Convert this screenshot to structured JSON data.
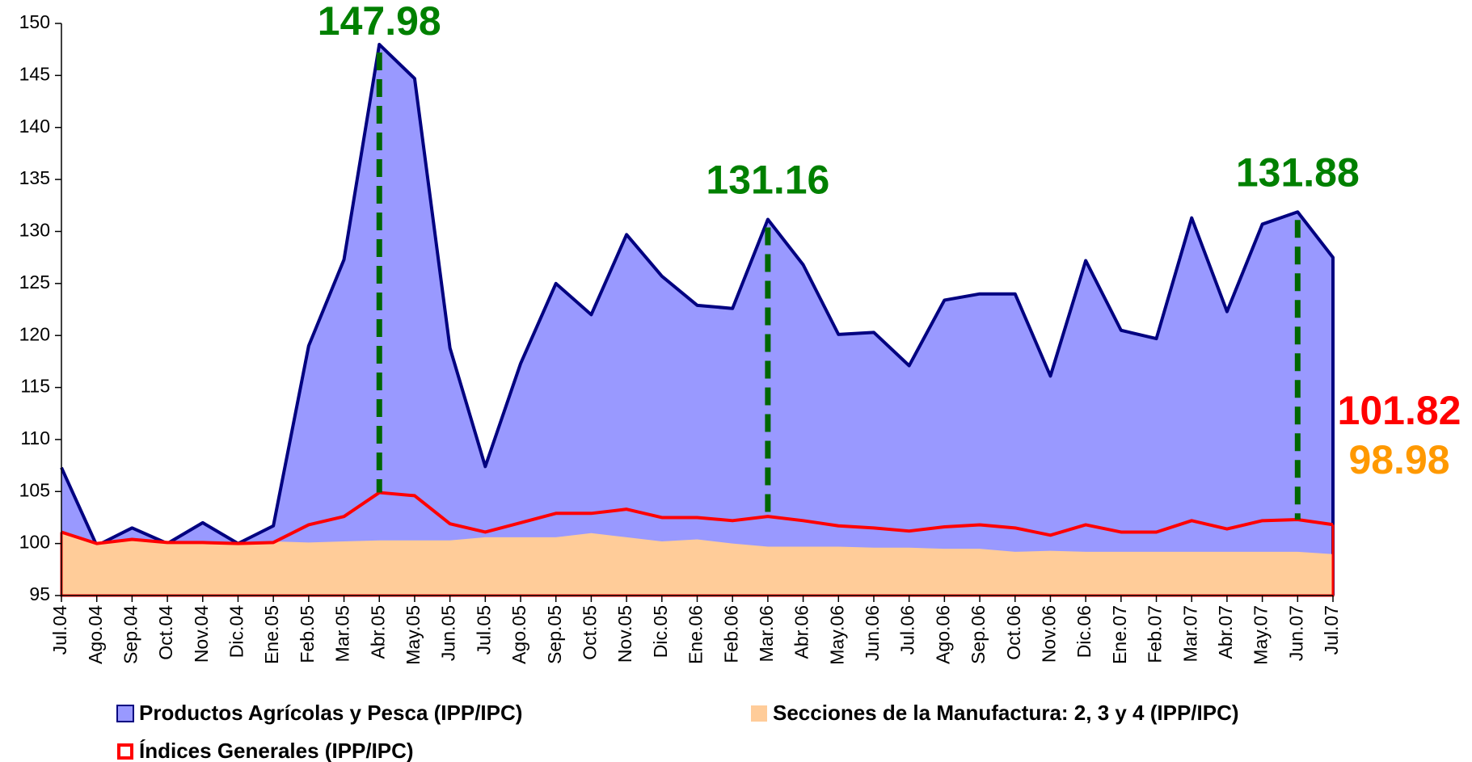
{
  "chart_data": {
    "type": "area",
    "categories": [
      "Jul.04",
      "Ago.04",
      "Sep.04",
      "Oct.04",
      "Nov.04",
      "Dic.04",
      "Ene.05",
      "Feb.05",
      "Mar.05",
      "Abr.05",
      "May.05",
      "Jun.05",
      "Jul.05",
      "Ago.05",
      "Sep.05",
      "Oct.05",
      "Nov.05",
      "Dic.05",
      "Ene.06",
      "Feb.06",
      "Mar.06",
      "Abr.06",
      "May.06",
      "Jun.06",
      "Jul.06",
      "Ago.06",
      "Sep.06",
      "Oct.06",
      "Nov.06",
      "Dic.06",
      "Ene.07",
      "Feb.07",
      "Mar.07",
      "Abr.07",
      "May.07",
      "Jun.07",
      "Jul.07"
    ],
    "series": [
      {
        "name": "Productos Agrícolas y Pesca (IPP/IPC)",
        "type": "area",
        "color": "#9999ff",
        "line_color": "#000080",
        "values": [
          107.3,
          99.8,
          101.5,
          100.0,
          102.0,
          100.0,
          101.7,
          119.0,
          127.3,
          147.98,
          144.7,
          118.8,
          107.4,
          117.3,
          125.0,
          122.0,
          129.7,
          125.7,
          122.9,
          122.6,
          131.16,
          126.8,
          120.1,
          120.3,
          117.1,
          123.4,
          124.0,
          124.0,
          116.1,
          127.2,
          120.5,
          119.7,
          131.3,
          122.3,
          130.7,
          131.88,
          127.5
        ],
        "value_labels": [
          null,
          null,
          null,
          null,
          null,
          null,
          null,
          null,
          null,
          "147.98",
          null,
          null,
          null,
          null,
          null,
          null,
          null,
          null,
          null,
          null,
          "131.16",
          null,
          null,
          null,
          null,
          null,
          null,
          null,
          null,
          null,
          null,
          null,
          null,
          null,
          null,
          "131.88",
          null
        ]
      },
      {
        "name": "Secciones de la Manufactura: 2, 3 y 4 (IPP/IPC)",
        "type": "area",
        "color": "#ffcc99",
        "values": [
          101.0,
          100.0,
          100.4,
          100.2,
          100.1,
          100.0,
          100.2,
          100.1,
          100.2,
          100.3,
          100.3,
          100.3,
          100.6,
          100.6,
          100.6,
          101.0,
          100.6,
          100.2,
          100.4,
          100.0,
          99.7,
          99.7,
          99.7,
          99.6,
          99.6,
          99.5,
          99.5,
          99.2,
          99.3,
          99.2,
          99.2,
          99.2,
          99.2,
          99.2,
          99.2,
          99.2,
          98.98
        ],
        "value_labels": [
          null,
          null,
          null,
          null,
          null,
          null,
          null,
          null,
          null,
          null,
          null,
          null,
          null,
          null,
          null,
          null,
          null,
          null,
          null,
          null,
          null,
          null,
          null,
          null,
          null,
          null,
          null,
          null,
          null,
          null,
          null,
          null,
          null,
          null,
          null,
          null,
          "98.98"
        ]
      },
      {
        "name": "Índices Generales (IPP/IPC)",
        "type": "line",
        "color": "#ff0000",
        "values": [
          101.1,
          100.0,
          100.4,
          100.1,
          100.1,
          100.0,
          100.1,
          101.8,
          102.6,
          104.9,
          104.6,
          101.9,
          101.1,
          102.0,
          102.9,
          102.9,
          103.3,
          102.5,
          102.5,
          102.2,
          102.6,
          102.2,
          101.7,
          101.5,
          101.2,
          101.6,
          101.8,
          101.5,
          100.8,
          101.8,
          101.1,
          101.1,
          102.2,
          101.4,
          102.2,
          102.3,
          101.82
        ],
        "value_labels": [
          null,
          null,
          null,
          null,
          null,
          null,
          null,
          null,
          null,
          null,
          null,
          null,
          null,
          null,
          null,
          null,
          null,
          null,
          null,
          null,
          null,
          null,
          null,
          null,
          null,
          null,
          null,
          null,
          null,
          null,
          null,
          null,
          null,
          null,
          null,
          null,
          "101.82"
        ]
      }
    ],
    "ylim": [
      95,
      150
    ],
    "yticks": [
      95,
      100,
      105,
      110,
      115,
      120,
      125,
      130,
      135,
      140,
      145,
      150
    ],
    "grid": false
  }
}
